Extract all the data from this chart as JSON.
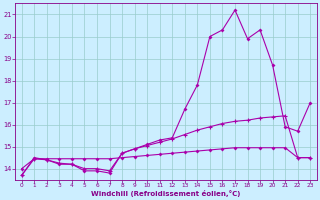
{
  "xlabel": "Windchill (Refroidissement éolien,°C)",
  "bg_color": "#cceeff",
  "line_color": "#aa00aa",
  "grid_color": "#99cccc",
  "tick_color": "#880088",
  "xlim": [
    -0.5,
    23.5
  ],
  "ylim": [
    13.5,
    21.5
  ],
  "yticks": [
    14,
    15,
    16,
    17,
    18,
    19,
    20,
    21
  ],
  "xticks": [
    0,
    1,
    2,
    3,
    4,
    5,
    6,
    7,
    8,
    9,
    10,
    11,
    12,
    13,
    14,
    15,
    16,
    17,
    18,
    19,
    20,
    21,
    22,
    23
  ],
  "series1_x": [
    0,
    1,
    2,
    3,
    4,
    5,
    6,
    7,
    8,
    9,
    10,
    11,
    12,
    13,
    14,
    15,
    16,
    17,
    18,
    19,
    20,
    21,
    22,
    23
  ],
  "series1_y": [
    13.7,
    14.5,
    14.4,
    14.2,
    14.2,
    13.9,
    13.9,
    13.8,
    14.7,
    14.9,
    15.1,
    15.3,
    15.4,
    16.7,
    17.8,
    20.0,
    20.3,
    21.2,
    19.9,
    20.3,
    18.7,
    15.9,
    15.7,
    17.0
  ],
  "series2_x": [
    0,
    1,
    2,
    3,
    4,
    5,
    6,
    7,
    8,
    9,
    10,
    11,
    12,
    13,
    14,
    15,
    16,
    17,
    18,
    19,
    20,
    21,
    22,
    23
  ],
  "series2_y": [
    14.0,
    14.45,
    14.45,
    14.45,
    14.45,
    14.45,
    14.45,
    14.45,
    14.5,
    14.55,
    14.6,
    14.65,
    14.7,
    14.75,
    14.8,
    14.85,
    14.9,
    14.95,
    14.95,
    14.95,
    14.95,
    14.95,
    14.5,
    14.5
  ],
  "series3_x": [
    0,
    1,
    2,
    3,
    4,
    5,
    6,
    7,
    8,
    9,
    10,
    11,
    12,
    13,
    14,
    15,
    16,
    17,
    18,
    19,
    20,
    21,
    22,
    23
  ],
  "series3_y": [
    13.7,
    14.45,
    14.4,
    14.25,
    14.2,
    14.0,
    14.0,
    13.9,
    14.7,
    14.9,
    15.05,
    15.2,
    15.35,
    15.55,
    15.75,
    15.9,
    16.05,
    16.15,
    16.2,
    16.3,
    16.35,
    16.4,
    14.5,
    14.5
  ]
}
